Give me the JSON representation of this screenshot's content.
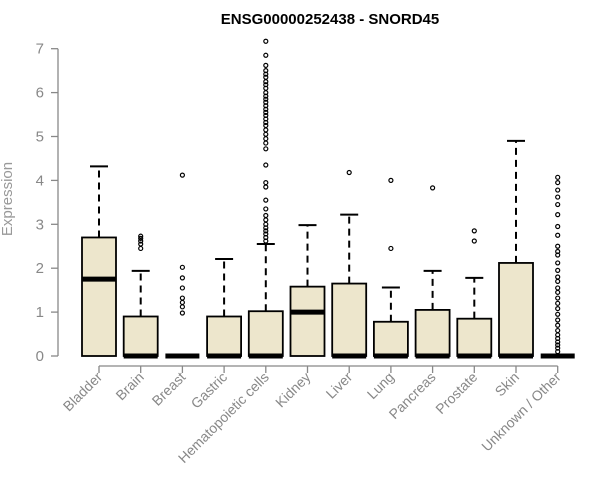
{
  "chart_data": {
    "type": "boxplot",
    "title": "ENSG00000252438 - SNORD45",
    "xlabel": "",
    "ylabel": "Expression",
    "ylim": [
      0,
      7
    ],
    "yticks": [
      0,
      1,
      2,
      3,
      4,
      5,
      6,
      7
    ],
    "box_fill": "#ede6cc",
    "categories": [
      "Bladder",
      "Brain",
      "Breast",
      "Gastric",
      "Hematopoietic cells",
      "Kidney",
      "Liver",
      "Lung",
      "Pancreas",
      "Prostate",
      "Skin",
      "Unknown / Other"
    ],
    "boxes": [
      {
        "q1": 0,
        "median": 1.75,
        "q3": 2.7,
        "whisker_low": 0,
        "whisker_high": 4.32,
        "outliers": []
      },
      {
        "q1": 0,
        "median": 0,
        "q3": 0.9,
        "whisker_low": 0,
        "whisker_high": 1.94,
        "outliers": [
          2.45,
          2.55,
          2.62,
          2.68,
          2.73
        ]
      },
      {
        "q1": 0,
        "median": 0,
        "q3": 0,
        "whisker_low": 0,
        "whisker_high": 0,
        "outliers": [
          4.12,
          2.02,
          1.78,
          1.55,
          1.32,
          1.22,
          1.12,
          0.98
        ]
      },
      {
        "q1": 0,
        "median": 0,
        "q3": 0.9,
        "whisker_low": 0,
        "whisker_high": 2.21,
        "outliers": []
      },
      {
        "q1": 0,
        "median": 0,
        "q3": 1.02,
        "whisker_low": 0,
        "whisker_high": 2.55,
        "outliers": [
          7.17,
          6.85,
          6.62,
          6.5,
          6.42,
          6.35,
          6.25,
          6.18,
          6.1,
          6.0,
          5.92,
          5.85,
          5.78,
          5.7,
          5.62,
          5.55,
          5.48,
          5.4,
          5.32,
          5.25,
          5.15,
          5.05,
          4.95,
          4.85,
          4.72,
          4.35,
          3.95,
          3.85,
          3.55,
          3.35,
          3.2,
          3.1,
          3.0,
          2.92,
          2.85,
          2.78,
          2.7,
          2.62
        ]
      },
      {
        "q1": 0,
        "median": 1.0,
        "q3": 1.58,
        "whisker_low": 0,
        "whisker_high": 2.98,
        "outliers": []
      },
      {
        "q1": 0,
        "median": 0,
        "q3": 1.65,
        "whisker_low": 0,
        "whisker_high": 3.22,
        "outliers": [
          4.18
        ]
      },
      {
        "q1": 0,
        "median": 0,
        "q3": 0.78,
        "whisker_low": 0,
        "whisker_high": 1.56,
        "outliers": [
          4.0,
          2.45
        ]
      },
      {
        "q1": 0,
        "median": 0,
        "q3": 1.05,
        "whisker_low": 0,
        "whisker_high": 1.94,
        "outliers": [
          3.83
        ]
      },
      {
        "q1": 0,
        "median": 0,
        "q3": 0.85,
        "whisker_low": 0,
        "whisker_high": 1.78,
        "outliers": [
          2.85,
          2.62
        ]
      },
      {
        "q1": 0,
        "median": 0,
        "q3": 2.12,
        "whisker_low": 0,
        "whisker_high": 4.9,
        "outliers": []
      },
      {
        "q1": 0,
        "median": 0,
        "q3": 0,
        "whisker_low": 0,
        "whisker_high": 0,
        "outliers": [
          4.07,
          3.95,
          3.78,
          3.62,
          3.45,
          3.22,
          2.95,
          2.75,
          2.5,
          2.38,
          2.3,
          2.12,
          1.95,
          1.8,
          1.7,
          1.55,
          1.45,
          1.32,
          1.2,
          1.08,
          0.95,
          0.82,
          0.7,
          0.58,
          0.48,
          0.4,
          0.32,
          0.25,
          0.18,
          0.1
        ]
      }
    ]
  }
}
